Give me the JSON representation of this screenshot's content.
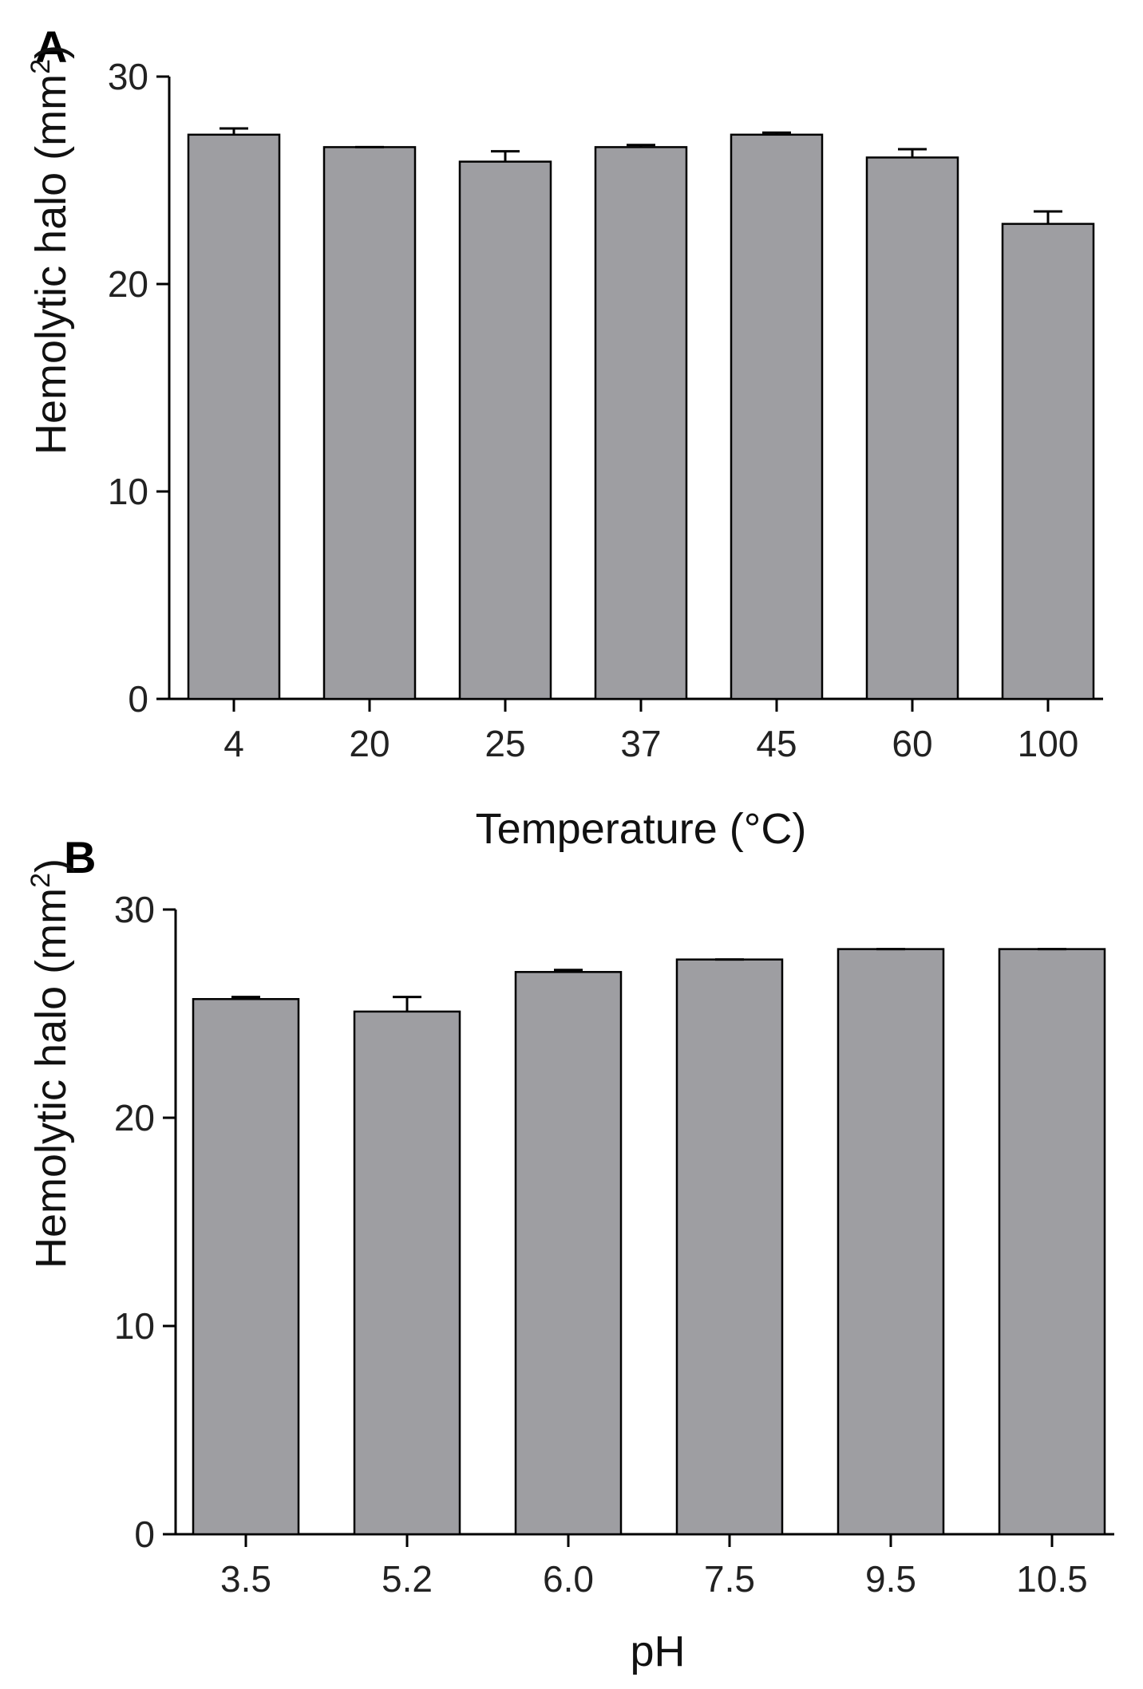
{
  "chart_data": [
    {
      "type": "bar",
      "panel": "A",
      "categories": [
        "4",
        "20",
        "25",
        "37",
        "45",
        "60",
        "100"
      ],
      "values": [
        27.2,
        26.6,
        25.9,
        26.6,
        27.2,
        26.1,
        22.9
      ],
      "errors": [
        0.3,
        0.0,
        0.5,
        0.1,
        0.1,
        0.4,
        0.6
      ],
      "xlabel": "Temperature (°C)",
      "ylabel": "Hemolytic halo (mm",
      "ylabel_sup": "2",
      "ylabel_close": ")",
      "ylim": [
        0,
        30
      ],
      "yticks": [
        "0",
        "10",
        "20",
        "30"
      ],
      "ytick_values": [
        0,
        10,
        20,
        30
      ],
      "bar_color": "#9e9ea2",
      "grid": false
    },
    {
      "type": "bar",
      "panel": "B",
      "categories": [
        "3.5",
        "5.2",
        "6.0",
        "7.5",
        "9.5",
        "10.5"
      ],
      "values": [
        25.7,
        25.1,
        27.0,
        27.6,
        28.1,
        28.1
      ],
      "errors": [
        0.1,
        0.7,
        0.1,
        0.0,
        0.0,
        0.0
      ],
      "xlabel": "pH",
      "ylabel": "Hemolytic halo (mm",
      "ylabel_sup": "2",
      "ylabel_close": ")",
      "ylim": [
        0,
        30
      ],
      "yticks": [
        "0",
        "10",
        "20",
        "30"
      ],
      "ytick_values": [
        0,
        10,
        20,
        30
      ],
      "bar_color": "#9e9ea2",
      "grid": false
    }
  ]
}
